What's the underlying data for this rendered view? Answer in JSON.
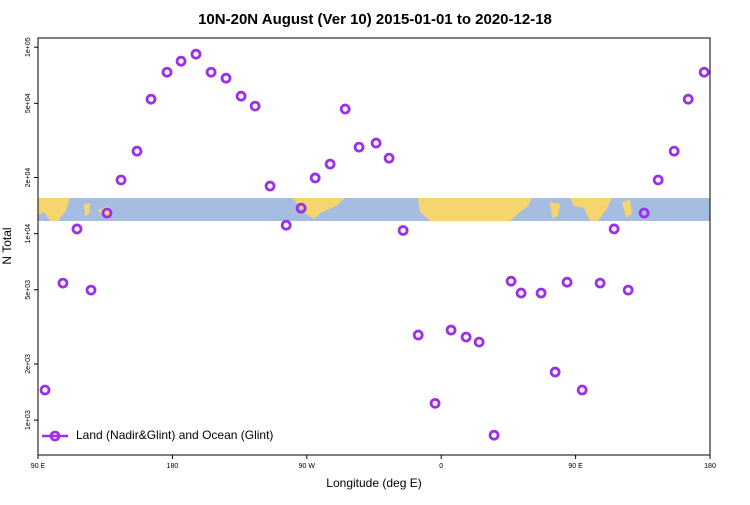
{
  "chart_data": {
    "type": "scatter",
    "title": "10N-20N August (Ver 10)   2015-01-01 to 2020-12-18",
    "x_label": "Longitude (deg E)",
    "y_label": "N Total",
    "log_y": true,
    "xlim": [
      90,
      540
    ],
    "xticks": [
      {
        "value": 90,
        "label": "90 E"
      },
      {
        "value": 180,
        "label": "180"
      },
      {
        "value": 270,
        "label": "90 W"
      },
      {
        "value": 360,
        "label": "0"
      },
      {
        "value": 450,
        "label": "90 E"
      },
      {
        "value": 540,
        "label": "180"
      }
    ],
    "ylim": [
      650,
      112000
    ],
    "yticks": [
      {
        "value": 1000,
        "label": "1e+03"
      },
      {
        "value": 2000,
        "label": "2e+03"
      },
      {
        "value": 5000,
        "label": "5e+03"
      },
      {
        "value": 10000,
        "label": "1e+04"
      },
      {
        "value": 20000,
        "label": "2e+04"
      },
      {
        "value": 50000,
        "label": "5e+04"
      },
      {
        "value": 100000,
        "label": "1e+05"
      }
    ],
    "legend_position": "lower left",
    "series": [
      {
        "name": "Land (Nadir&Glint) and Ocean (Glint)",
        "color": "#9b30e8",
        "x": [
          94.7,
          106.7,
          116.1,
          125.5,
          136.2,
          145.6,
          156.3,
          165.7,
          176.4,
          185.8,
          195.8,
          205.9,
          215.9,
          226.0,
          235.4,
          245.4,
          256.2,
          266.2,
          275.6,
          285.6,
          295.7,
          305.0,
          316.4,
          325.1,
          334.5,
          344.6,
          355.9,
          366.6,
          376.7,
          385.4,
          395.4,
          406.8,
          413.5,
          426.9,
          436.3,
          444.3,
          454.4,
          466.4,
          475.8,
          485.2,
          495.9,
          505.3,
          516.0,
          525.4,
          536.1
        ],
        "values": [
          1450,
          5430,
          10600,
          4980,
          12900,
          19400,
          27700,
          52600,
          73400,
          84100,
          91700,
          73400,
          68200,
          54600,
          48300,
          18000,
          11100,
          13700,
          19900,
          23600,
          46600,
          29100,
          30600,
          25400,
          10400,
          2860,
          1230,
          3040,
          2790,
          2620,
          830,
          5560,
          4800,
          4800,
          1810,
          5490,
          1450,
          5430,
          10600,
          4980,
          12900,
          19400,
          27700,
          52600,
          73400
        ]
      }
    ]
  }
}
